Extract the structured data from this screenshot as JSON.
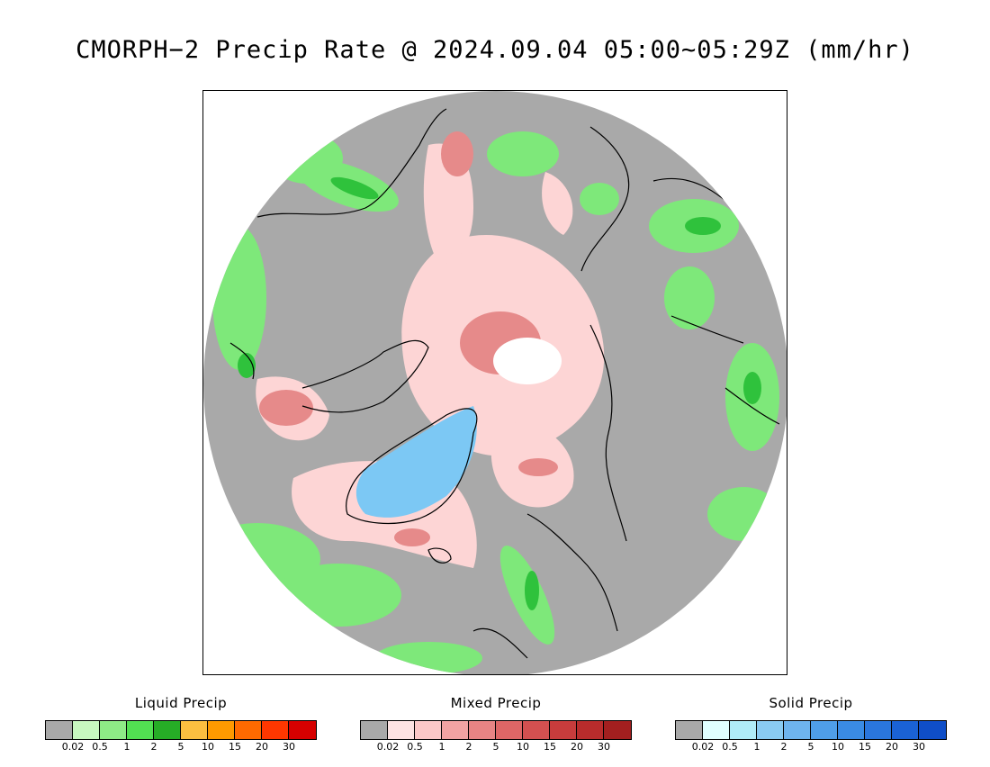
{
  "title": "CMORPH−2 Precip Rate @ 2024.09.04 05:00~05:29Z (mm/hr)",
  "map": {
    "colors": {
      "no_precip": "#a9a9a9",
      "liquid_light": "#b8f5b0",
      "liquid_mid": "#7ee87a",
      "liquid_heavy": "#2fc23c",
      "mixed_light": "#fdd5d5",
      "mixed_mid": "#e68a8a",
      "solid_light": "#b5ecfb",
      "solid_mid": "#7cc8f4",
      "no_data": "#ffffff",
      "coast": "#000000"
    }
  },
  "legends": [
    {
      "title": "Liquid Precip",
      "colors": [
        "#a9a9a9",
        "#c8f8c0",
        "#8eeb86",
        "#52e052",
        "#26ad26",
        "#fcbf40",
        "#ff9a00",
        "#ff6a00",
        "#ff3700",
        "#d60000"
      ],
      "ticks": [
        "0.02",
        "0.5",
        "1",
        "2",
        "5",
        "10",
        "15",
        "20",
        "30"
      ]
    },
    {
      "title": "Mixed Precip",
      "colors": [
        "#a9a9a9",
        "#fde3e3",
        "#fcc8c8",
        "#f2a3a3",
        "#e88484",
        "#de6666",
        "#d45050",
        "#c83c3c",
        "#b82c2c",
        "#a31f1f"
      ],
      "ticks": [
        "0.02",
        "0.5",
        "1",
        "2",
        "5",
        "10",
        "15",
        "20",
        "30"
      ]
    },
    {
      "title": "Solid Precip",
      "colors": [
        "#a9a9a9",
        "#e0ffff",
        "#b0ecf8",
        "#8acbf2",
        "#6eb4ee",
        "#4f9ee8",
        "#3a8be4",
        "#2a76dd",
        "#1a62d5",
        "#0f4ec8"
      ],
      "ticks": [
        "0.02",
        "0.5",
        "1",
        "2",
        "5",
        "10",
        "15",
        "20",
        "30"
      ]
    }
  ]
}
